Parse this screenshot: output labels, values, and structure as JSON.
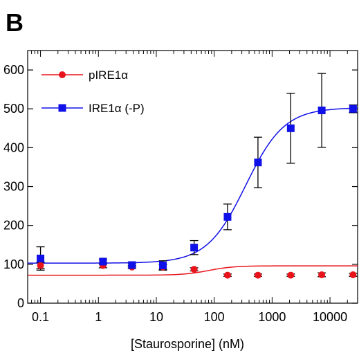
{
  "panel_label": "B",
  "chart_data": {
    "type": "scatter",
    "xscale": "log",
    "xlim": [
      0.06,
      30000
    ],
    "ylim": [
      0,
      650
    ],
    "xlabel": "[Staurosporine] (nM)",
    "ylabel": "",
    "x_ticks": [
      {
        "value": 0.1,
        "label": "0.1"
      },
      {
        "value": 1,
        "label": "1"
      },
      {
        "value": 10,
        "label": "10"
      },
      {
        "value": 100,
        "label": "100"
      },
      {
        "value": 1000,
        "label": "1000"
      },
      {
        "value": 10000,
        "label": "10000"
      }
    ],
    "y_ticks": [
      {
        "value": 0,
        "label": "0"
      },
      {
        "value": 100,
        "label": "100"
      },
      {
        "value": 200,
        "label": "200"
      },
      {
        "value": 300,
        "label": "300"
      },
      {
        "value": 400,
        "label": "400"
      },
      {
        "value": 500,
        "label": "500"
      },
      {
        "value": 600,
        "label": "600"
      }
    ],
    "legend_position": "top-left",
    "series": [
      {
        "name": "pIRE1α",
        "color": "#e8141b",
        "marker": "circle",
        "x": [
          0.1,
          1.2,
          3.8,
          13,
          45,
          170,
          570,
          2100,
          7200,
          25000
        ],
        "y": [
          97,
          97,
          93,
          93,
          87,
          72,
          72,
          72,
          73,
          73
        ],
        "err": [
          8,
          6,
          4,
          6,
          4,
          3,
          3,
          3,
          5,
          4
        ],
        "fit": {
          "bottom": 72,
          "top": 96,
          "ec50": 80,
          "hill": 2.0
        }
      },
      {
        "name": "IRE1α (-P)",
        "color": "#1010e8",
        "marker": "square",
        "x": [
          0.1,
          1.2,
          3.8,
          13,
          45,
          170,
          570,
          2100,
          7200,
          25000
        ],
        "y": [
          115,
          107,
          98,
          97,
          143,
          222,
          362,
          450,
          496,
          500
        ],
        "err": [
          30,
          6,
          5,
          12,
          18,
          33,
          65,
          90,
          95,
          10
        ],
        "fit": {
          "bottom": 103,
          "top": 503,
          "ec50": 350,
          "hill": 1.3
        }
      }
    ]
  }
}
